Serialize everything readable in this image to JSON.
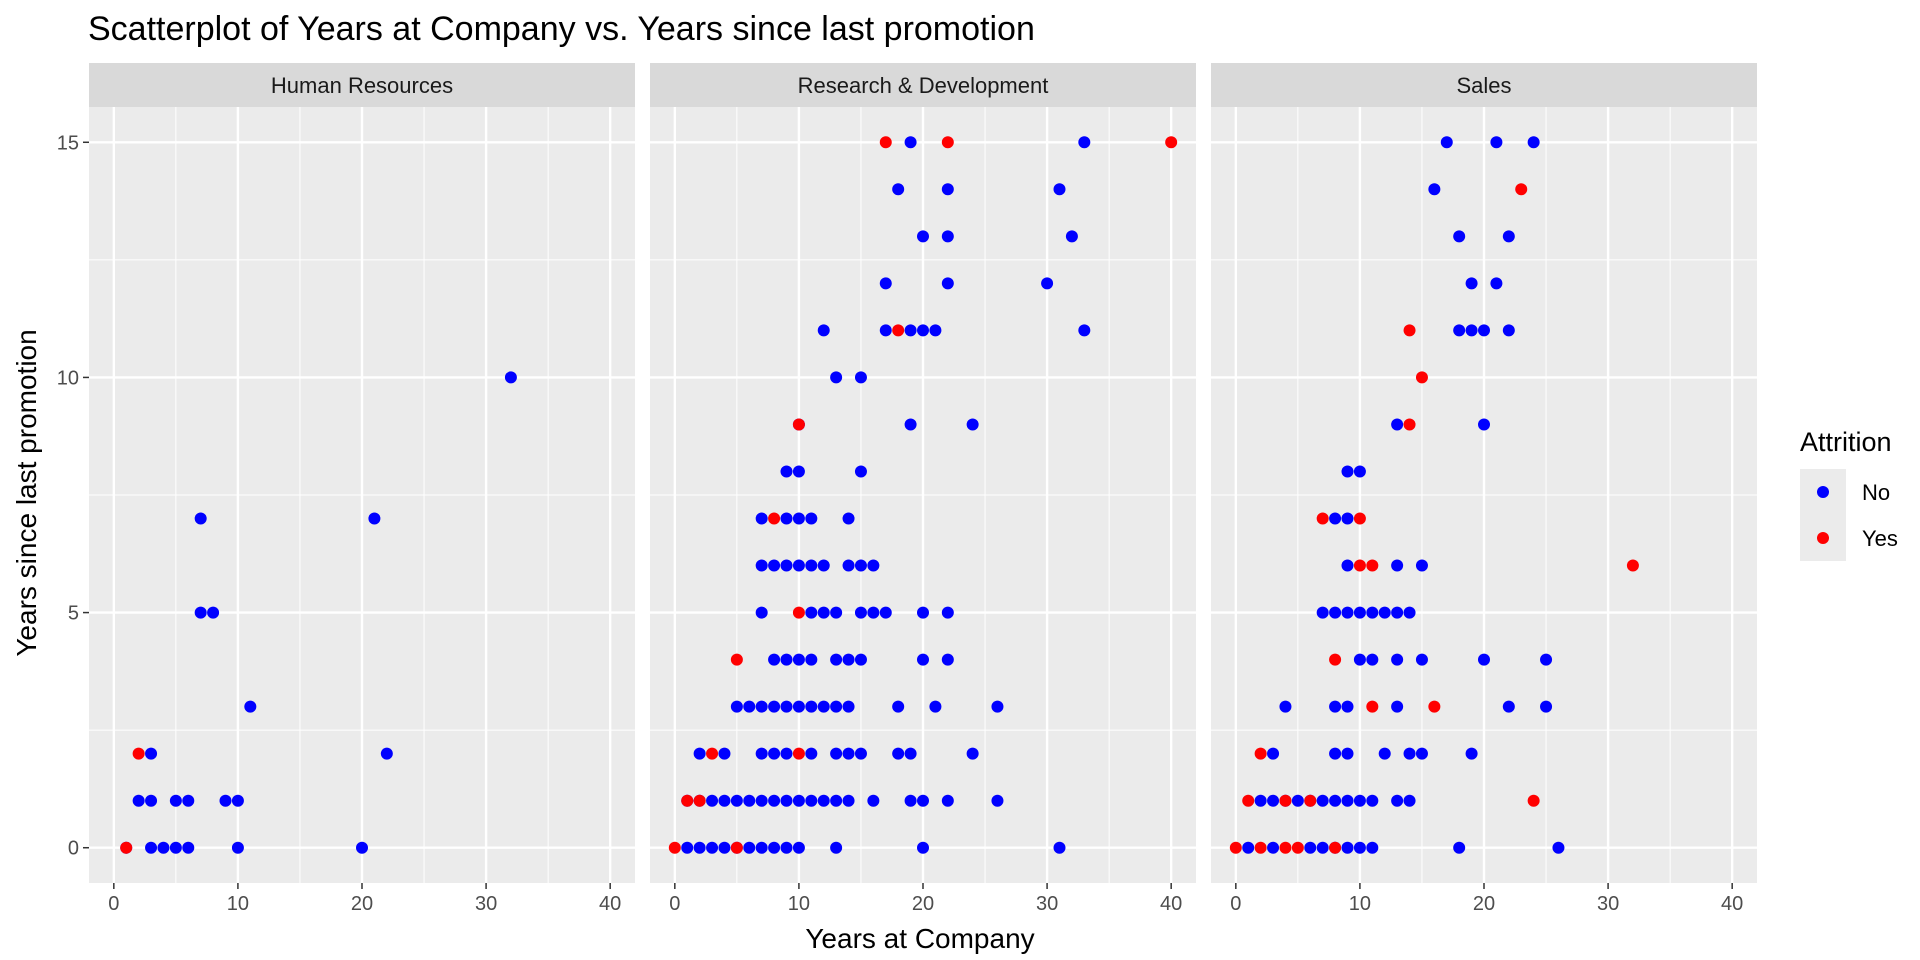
{
  "chart_data": {
    "type": "scatter",
    "title": "Scatterplot of Years at Company vs. Years since last promotion",
    "xlabel": "Years at Company",
    "ylabel": "Years since last promotion",
    "xlim": [
      -2,
      42
    ],
    "ylim": [
      -0.75,
      15.75
    ],
    "x_ticks": [
      0,
      10,
      20,
      30,
      40
    ],
    "y_ticks": [
      0,
      5,
      10,
      15
    ],
    "grid": true,
    "legend": {
      "title": "Attrition",
      "position": "right",
      "entries": [
        {
          "label": "No",
          "color": "#0000FF"
        },
        {
          "label": "Yes",
          "color": "#FF0000"
        }
      ]
    },
    "colors": {
      "No": "#0000FF",
      "Yes": "#FF0000"
    },
    "facets": [
      {
        "name": "Human Resources",
        "points": {
          "No": [
            [
              1,
              0
            ],
            [
              3,
              0
            ],
            [
              4,
              0
            ],
            [
              5,
              0
            ],
            [
              6,
              0
            ],
            [
              10,
              0
            ],
            [
              20,
              0
            ],
            [
              2,
              1
            ],
            [
              3,
              1
            ],
            [
              5,
              1
            ],
            [
              6,
              1
            ],
            [
              9,
              1
            ],
            [
              10,
              1
            ],
            [
              3,
              2
            ],
            [
              22,
              2
            ],
            [
              11,
              3
            ],
            [
              7,
              5
            ],
            [
              8,
              5
            ],
            [
              7,
              7
            ],
            [
              21,
              7
            ],
            [
              32,
              10
            ]
          ],
          "Yes": [
            [
              1,
              0
            ],
            [
              2,
              2
            ]
          ]
        }
      },
      {
        "name": "Research & Development",
        "points": {
          "No": [
            [
              1,
              0
            ],
            [
              2,
              0
            ],
            [
              3,
              0
            ],
            [
              4,
              0
            ],
            [
              5,
              0
            ],
            [
              6,
              0
            ],
            [
              7,
              0
            ],
            [
              8,
              0
            ],
            [
              9,
              0
            ],
            [
              10,
              0
            ],
            [
              13,
              0
            ],
            [
              20,
              0
            ],
            [
              31,
              0
            ],
            [
              1,
              1
            ],
            [
              2,
              1
            ],
            [
              3,
              1
            ],
            [
              4,
              1
            ],
            [
              5,
              1
            ],
            [
              6,
              1
            ],
            [
              7,
              1
            ],
            [
              8,
              1
            ],
            [
              9,
              1
            ],
            [
              10,
              1
            ],
            [
              11,
              1
            ],
            [
              12,
              1
            ],
            [
              13,
              1
            ],
            [
              14,
              1
            ],
            [
              16,
              1
            ],
            [
              19,
              1
            ],
            [
              20,
              1
            ],
            [
              22,
              1
            ],
            [
              26,
              1
            ],
            [
              2,
              2
            ],
            [
              4,
              2
            ],
            [
              7,
              2
            ],
            [
              8,
              2
            ],
            [
              9,
              2
            ],
            [
              11,
              2
            ],
            [
              13,
              2
            ],
            [
              14,
              2
            ],
            [
              15,
              2
            ],
            [
              18,
              2
            ],
            [
              19,
              2
            ],
            [
              24,
              2
            ],
            [
              5,
              3
            ],
            [
              6,
              3
            ],
            [
              7,
              3
            ],
            [
              8,
              3
            ],
            [
              9,
              3
            ],
            [
              10,
              3
            ],
            [
              11,
              3
            ],
            [
              12,
              3
            ],
            [
              13,
              3
            ],
            [
              14,
              3
            ],
            [
              18,
              3
            ],
            [
              21,
              3
            ],
            [
              26,
              3
            ],
            [
              8,
              4
            ],
            [
              9,
              4
            ],
            [
              10,
              4
            ],
            [
              11,
              4
            ],
            [
              13,
              4
            ],
            [
              14,
              4
            ],
            [
              15,
              4
            ],
            [
              20,
              4
            ],
            [
              22,
              4
            ],
            [
              7,
              5
            ],
            [
              11,
              5
            ],
            [
              12,
              5
            ],
            [
              13,
              5
            ],
            [
              15,
              5
            ],
            [
              16,
              5
            ],
            [
              17,
              5
            ],
            [
              20,
              5
            ],
            [
              22,
              5
            ],
            [
              7,
              6
            ],
            [
              8,
              6
            ],
            [
              9,
              6
            ],
            [
              10,
              6
            ],
            [
              11,
              6
            ],
            [
              12,
              6
            ],
            [
              14,
              6
            ],
            [
              15,
              6
            ],
            [
              16,
              6
            ],
            [
              7,
              7
            ],
            [
              9,
              7
            ],
            [
              10,
              7
            ],
            [
              11,
              7
            ],
            [
              14,
              7
            ],
            [
              9,
              8
            ],
            [
              10,
              8
            ],
            [
              15,
              8
            ],
            [
              10,
              9
            ],
            [
              19,
              9
            ],
            [
              24,
              9
            ],
            [
              13,
              10
            ],
            [
              15,
              10
            ],
            [
              12,
              11
            ],
            [
              17,
              11
            ],
            [
              19,
              11
            ],
            [
              20,
              11
            ],
            [
              21,
              11
            ],
            [
              33,
              11
            ],
            [
              17,
              12
            ],
            [
              22,
              12
            ],
            [
              30,
              12
            ],
            [
              20,
              13
            ],
            [
              22,
              13
            ],
            [
              32,
              13
            ],
            [
              18,
              14
            ],
            [
              22,
              14
            ],
            [
              31,
              14
            ],
            [
              19,
              15
            ],
            [
              33,
              15
            ]
          ],
          "Yes": [
            [
              0,
              0
            ],
            [
              5,
              0
            ],
            [
              1,
              1
            ],
            [
              2,
              1
            ],
            [
              3,
              2
            ],
            [
              10,
              2
            ],
            [
              5,
              4
            ],
            [
              10,
              5
            ],
            [
              8,
              7
            ],
            [
              10,
              9
            ],
            [
              18,
              11
            ],
            [
              17,
              15
            ],
            [
              22,
              15
            ],
            [
              40,
              15
            ]
          ]
        }
      },
      {
        "name": "Sales",
        "points": {
          "No": [
            [
              1,
              0
            ],
            [
              3,
              0
            ],
            [
              6,
              0
            ],
            [
              7,
              0
            ],
            [
              8,
              0
            ],
            [
              9,
              0
            ],
            [
              10,
              0
            ],
            [
              11,
              0
            ],
            [
              18,
              0
            ],
            [
              26,
              0
            ],
            [
              2,
              1
            ],
            [
              3,
              1
            ],
            [
              4,
              1
            ],
            [
              5,
              1
            ],
            [
              6,
              1
            ],
            [
              7,
              1
            ],
            [
              8,
              1
            ],
            [
              9,
              1
            ],
            [
              10,
              1
            ],
            [
              11,
              1
            ],
            [
              13,
              1
            ],
            [
              14,
              1
            ],
            [
              3,
              2
            ],
            [
              8,
              2
            ],
            [
              9,
              2
            ],
            [
              12,
              2
            ],
            [
              14,
              2
            ],
            [
              15,
              2
            ],
            [
              19,
              2
            ],
            [
              4,
              3
            ],
            [
              8,
              3
            ],
            [
              9,
              3
            ],
            [
              13,
              3
            ],
            [
              22,
              3
            ],
            [
              25,
              3
            ],
            [
              10,
              4
            ],
            [
              11,
              4
            ],
            [
              13,
              4
            ],
            [
              15,
              4
            ],
            [
              20,
              4
            ],
            [
              25,
              4
            ],
            [
              7,
              5
            ],
            [
              8,
              5
            ],
            [
              9,
              5
            ],
            [
              10,
              5
            ],
            [
              11,
              5
            ],
            [
              12,
              5
            ],
            [
              13,
              5
            ],
            [
              14,
              5
            ],
            [
              9,
              6
            ],
            [
              13,
              6
            ],
            [
              15,
              6
            ],
            [
              8,
              7
            ],
            [
              9,
              7
            ],
            [
              9,
              8
            ],
            [
              10,
              8
            ],
            [
              13,
              9
            ],
            [
              20,
              9
            ],
            [
              18,
              11
            ],
            [
              19,
              11
            ],
            [
              20,
              11
            ],
            [
              22,
              11
            ],
            [
              19,
              12
            ],
            [
              21,
              12
            ],
            [
              18,
              13
            ],
            [
              22,
              13
            ],
            [
              16,
              14
            ],
            [
              17,
              15
            ],
            [
              21,
              15
            ],
            [
              24,
              15
            ]
          ],
          "Yes": [
            [
              0,
              0
            ],
            [
              2,
              0
            ],
            [
              4,
              0
            ],
            [
              5,
              0
            ],
            [
              8,
              0
            ],
            [
              1,
              1
            ],
            [
              4,
              1
            ],
            [
              6,
              1
            ],
            [
              24,
              1
            ],
            [
              2,
              2
            ],
            [
              11,
              3
            ],
            [
              16,
              3
            ],
            [
              8,
              4
            ],
            [
              10,
              6
            ],
            [
              11,
              6
            ],
            [
              32,
              6
            ],
            [
              7,
              7
            ],
            [
              10,
              7
            ],
            [
              14,
              9
            ],
            [
              15,
              10
            ],
            [
              14,
              11
            ],
            [
              23,
              14
            ]
          ]
        }
      }
    ]
  }
}
